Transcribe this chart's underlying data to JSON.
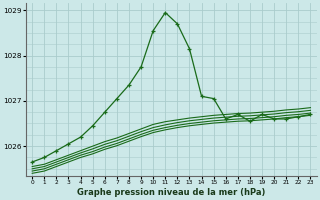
{
  "background_color": "#cce8e8",
  "grid_color": "#aacccc",
  "line_color": "#1a6b1a",
  "title": "Graphe pression niveau de la mer (hPa)",
  "xlim": [
    -0.5,
    23.5
  ],
  "ylim": [
    1025.35,
    1029.15
  ],
  "yticks": [
    1026,
    1027,
    1028,
    1029
  ],
  "xticks": [
    0,
    1,
    2,
    3,
    4,
    5,
    6,
    7,
    8,
    9,
    10,
    11,
    12,
    13,
    14,
    15,
    16,
    17,
    18,
    19,
    20,
    21,
    22,
    23
  ],
  "series": {
    "main": [
      1025.65,
      1025.75,
      1025.9,
      1026.05,
      1026.2,
      1026.45,
      1026.75,
      1027.05,
      1027.35,
      1027.75,
      1028.55,
      1028.95,
      1028.7,
      1028.15,
      1027.1,
      1027.05,
      1026.6,
      1026.7,
      1026.55,
      1026.7,
      1026.6,
      1026.6,
      1026.65,
      1026.7
    ],
    "line2": [
      1025.55,
      1025.6,
      1025.7,
      1025.8,
      1025.9,
      1026.0,
      1026.1,
      1026.18,
      1026.28,
      1026.38,
      1026.48,
      1026.54,
      1026.58,
      1026.62,
      1026.65,
      1026.68,
      1026.7,
      1026.72,
      1026.73,
      1026.75,
      1026.77,
      1026.8,
      1026.82,
      1026.85
    ],
    "line3": [
      1025.5,
      1025.55,
      1025.65,
      1025.75,
      1025.85,
      1025.94,
      1026.04,
      1026.12,
      1026.22,
      1026.32,
      1026.41,
      1026.47,
      1026.52,
      1026.56,
      1026.59,
      1026.62,
      1026.64,
      1026.66,
      1026.67,
      1026.69,
      1026.71,
      1026.74,
      1026.76,
      1026.79
    ],
    "line4": [
      1025.45,
      1025.5,
      1025.6,
      1025.7,
      1025.8,
      1025.88,
      1025.98,
      1026.06,
      1026.16,
      1026.26,
      1026.35,
      1026.41,
      1026.46,
      1026.5,
      1026.53,
      1026.56,
      1026.58,
      1026.6,
      1026.61,
      1026.63,
      1026.65,
      1026.68,
      1026.7,
      1026.73
    ],
    "line5": [
      1025.4,
      1025.45,
      1025.55,
      1025.65,
      1025.75,
      1025.83,
      1025.93,
      1026.01,
      1026.11,
      1026.21,
      1026.3,
      1026.36,
      1026.41,
      1026.45,
      1026.48,
      1026.51,
      1026.53,
      1026.55,
      1026.56,
      1026.58,
      1026.6,
      1026.63,
      1026.65,
      1026.68
    ]
  }
}
